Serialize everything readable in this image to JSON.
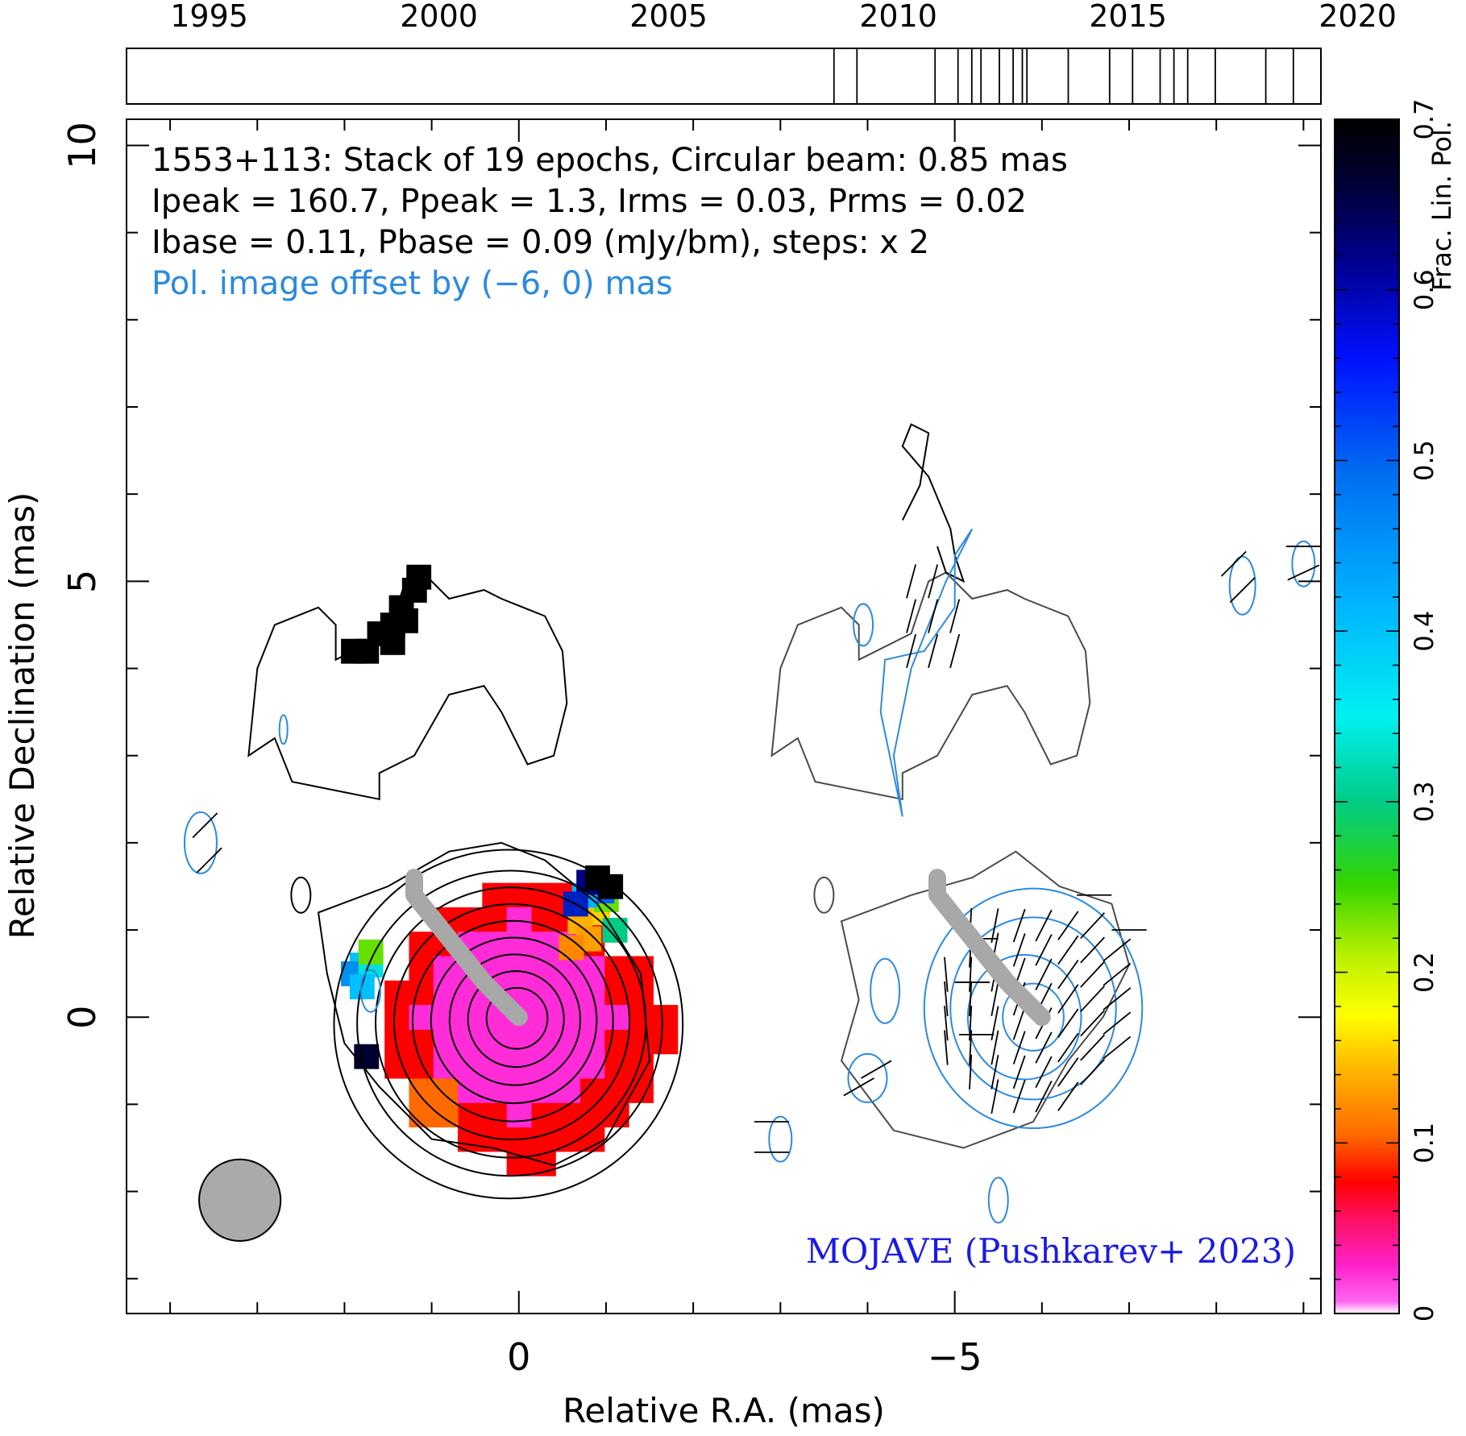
{
  "chart_data": {
    "type": "contour",
    "object": "1553+113",
    "header_lines": [
      "1553+113: Stack of 19 epochs, Circular beam: 0.85 mas",
      "Ipeak = 160.7, Ppeak = 1.3, Irms = 0.03, Prms = 0.02",
      "Ibase = 0.11, Pbase = 0.09 (mJy/bm), steps: x 2"
    ],
    "offset_note": "Pol. image offset by (−6, 0) mas",
    "credit": "MOJAVE (Pushkarev+ 2023)",
    "xlabel": "Relative R.A. (mas)",
    "ylabel": "Relative Declination (mas)",
    "xlim": [
      4.5,
      -9.2
    ],
    "ylim": [
      -3.4,
      10.3
    ],
    "x_ticks": [
      0,
      -5
    ],
    "x_tick_labels": [
      "0",
      "−5"
    ],
    "y_ticks": [
      0,
      5,
      10
    ],
    "y_tick_labels": [
      "0",
      "5",
      "10"
    ],
    "beam_mas": 0.85,
    "beam_center": [
      3.2,
      -2.1
    ],
    "timeline": {
      "range": [
        1993.2,
        2019.2
      ],
      "tick_labels": [
        "1995",
        "2000",
        "2005",
        "2010",
        "2015",
        "2020"
      ],
      "tick_years": [
        1995,
        2000,
        2005,
        2010,
        2015,
        2020
      ],
      "epochs": [
        2008.6,
        2009.1,
        2010.8,
        2011.3,
        2011.6,
        2011.8,
        2012.2,
        2012.5,
        2012.7,
        2012.8,
        2013.7,
        2014.6,
        2015.1,
        2015.7,
        2016.0,
        2016.3,
        2016.9,
        2018.0,
        2018.6
      ]
    },
    "colorbar": {
      "label": "Frac. Lin. Pol.",
      "range": [
        0,
        0.7
      ],
      "tick_labels": [
        "0",
        "0.1",
        "0.2",
        "0.3",
        "0.4",
        "0.5",
        "0.6",
        "0.7"
      ],
      "ticks": [
        0,
        0.1,
        0.2,
        0.3,
        0.4,
        0.5,
        0.6,
        0.7
      ]
    },
    "contour_levels_rings_mas": [
      0.35,
      0.55,
      0.75,
      0.95,
      1.15,
      1.35,
      1.55,
      1.75,
      2.0
    ],
    "jet_ridge": [
      [
        0,
        0
      ],
      [
        0.4,
        0.4
      ],
      [
        0.8,
        0.9
      ],
      [
        1.2,
        1.4
      ],
      [
        1.2,
        1.6
      ]
    ],
    "colors": {
      "stokes_i_contour": "#000000",
      "stokes_i_contour_right": "#4a4a4a",
      "pol_contour": "#2b8ae0",
      "offset_note_text": "#2b8ae0",
      "credit_text": "#1a1ae6",
      "ridge": "#a8a8a8",
      "beam_fill": "#aaaaaa"
    }
  }
}
